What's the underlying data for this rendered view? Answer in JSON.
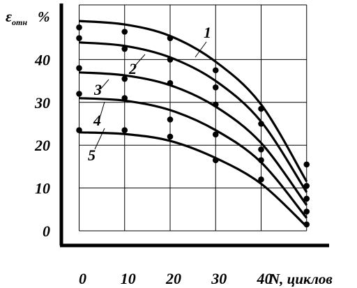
{
  "chart_data": {
    "type": "scatter",
    "ylabel": "ε",
    "ylabel_sub": "отн",
    "ylabel_unit": "%",
    "xlabel": "N, циклов",
    "xlim": [
      0,
      50
    ],
    "ylim": [
      -2,
      52
    ],
    "x_ticks": [
      0,
      10,
      20,
      30,
      40
    ],
    "x_tick_labels": [
      "0",
      "10",
      "20",
      "30",
      "40"
    ],
    "y_ticks": [
      0,
      10,
      20,
      30,
      40
    ],
    "y_tick_labels": [
      "0",
      "10",
      "20",
      "30",
      "40"
    ],
    "grid": true,
    "series": [
      {
        "name": "1",
        "points": [
          [
            0,
            47.5
          ],
          [
            10,
            46.5
          ],
          [
            20,
            45
          ],
          [
            30,
            37.5
          ],
          [
            40,
            28.5
          ],
          [
            50,
            15.5
          ]
        ],
        "fit": [
          [
            0,
            49
          ],
          [
            10,
            48.2
          ],
          [
            20,
            45.5
          ],
          [
            30,
            39.5
          ],
          [
            40,
            29.5
          ],
          [
            50,
            11.5
          ]
        ]
      },
      {
        "name": "2",
        "points": [
          [
            0,
            45
          ],
          [
            10,
            42.5
          ],
          [
            20,
            40
          ],
          [
            30,
            33.5
          ],
          [
            40,
            25
          ],
          [
            50,
            10.5
          ]
        ],
        "fit": [
          [
            0,
            44
          ],
          [
            10,
            43.2
          ],
          [
            20,
            40.5
          ],
          [
            30,
            35
          ],
          [
            40,
            25.5
          ],
          [
            50,
            9
          ]
        ]
      },
      {
        "name": "3",
        "points": [
          [
            0,
            38
          ],
          [
            10,
            35.5
          ],
          [
            20,
            34.5
          ],
          [
            30,
            29.5
          ],
          [
            40,
            19
          ],
          [
            50,
            7.5
          ]
        ],
        "fit": [
          [
            0,
            37
          ],
          [
            10,
            36.3
          ],
          [
            20,
            34
          ],
          [
            30,
            29
          ],
          [
            40,
            20.5
          ],
          [
            50,
            6
          ]
        ]
      },
      {
        "name": "4",
        "points": [
          [
            0,
            32
          ],
          [
            10,
            31
          ],
          [
            20,
            26
          ],
          [
            30,
            22.5
          ],
          [
            40,
            16.5
          ],
          [
            50,
            4.5
          ]
        ],
        "fit": [
          [
            0,
            31
          ],
          [
            10,
            30.4
          ],
          [
            20,
            28.2
          ],
          [
            30,
            23.5
          ],
          [
            40,
            16
          ],
          [
            50,
            3
          ]
        ]
      },
      {
        "name": "5",
        "points": [
          [
            0,
            23.5
          ],
          [
            10,
            23.5
          ],
          [
            20,
            22
          ],
          [
            30,
            16.5
          ],
          [
            40,
            12
          ],
          [
            50,
            1.5
          ]
        ],
        "fit": [
          [
            0,
            23
          ],
          [
            10,
            22.6
          ],
          [
            20,
            21
          ],
          [
            30,
            17
          ],
          [
            40,
            11
          ],
          [
            50,
            1
          ]
        ]
      }
    ]
  }
}
